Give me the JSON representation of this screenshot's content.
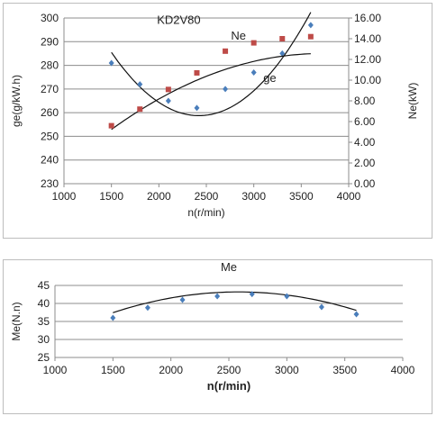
{
  "chart_data": [
    {
      "type": "scatter",
      "title": "KD2V80",
      "xlabel": "n(r/min)",
      "ylabel": "ge(g/kW.h)",
      "y2label": "Ne(kW)",
      "xlim": [
        1000,
        4000
      ],
      "x_ticks": [
        "1000",
        "1500",
        "2000",
        "2500",
        "3000",
        "3500",
        "4000"
      ],
      "ylim": [
        230,
        300
      ],
      "y_ticks": [
        "230",
        "240",
        "250",
        "260",
        "270",
        "280",
        "290",
        "300"
      ],
      "y2lim": [
        0,
        16
      ],
      "y2_ticks": [
        "0.00",
        "2.00",
        "4.00",
        "6.00",
        "8.00",
        "10.00",
        "12.00",
        "14.00",
        "16.00"
      ],
      "grid": true,
      "series": [
        {
          "name": "ge",
          "axis": "left",
          "marker": "diamond",
          "color": "#4a7ebb",
          "x": [
            1500,
            1800,
            2100,
            2400,
            2700,
            3000,
            3300,
            3600
          ],
          "values": [
            281,
            272,
            265,
            262,
            270,
            277,
            285,
            297
          ],
          "trend_coeffs": [
            443.18,
            -0.15232,
            3.145e-05
          ]
        },
        {
          "name": "Ne",
          "axis": "right",
          "marker": "square",
          "color": "#be4b48",
          "x": [
            1500,
            1800,
            2100,
            2400,
            2700,
            3000,
            3300,
            3600
          ],
          "values": [
            5.6,
            7.2,
            9.1,
            10.7,
            12.8,
            13.6,
            14.0,
            14.2
          ],
          "trend_coeffs": [
            -8.086,
            0.011132,
            -1.5e-06
          ]
        }
      ]
    },
    {
      "type": "scatter",
      "title": "Me",
      "xlabel": "n(r/min)",
      "ylabel": "Me(N.n)",
      "xlim": [
        1000,
        4000
      ],
      "x_ticks": [
        "1000",
        "1500",
        "2000",
        "2500",
        "3000",
        "3500",
        "4000"
      ],
      "ylim": [
        25,
        45
      ],
      "y_ticks": [
        "25",
        "30",
        "35",
        "40",
        "45"
      ],
      "grid": true,
      "series": [
        {
          "name": "Me",
          "marker": "diamond",
          "color": "#4a7ebb",
          "x": [
            1500,
            1800,
            2100,
            2400,
            2700,
            3000,
            3300,
            3600
          ],
          "values": [
            36.0,
            38.8,
            41.0,
            42.0,
            42.6,
            42.0,
            39.0,
            37.0
          ],
          "trend_coeffs": [
            10.35,
            0.02545,
            -4.93e-06
          ]
        }
      ]
    }
  ]
}
